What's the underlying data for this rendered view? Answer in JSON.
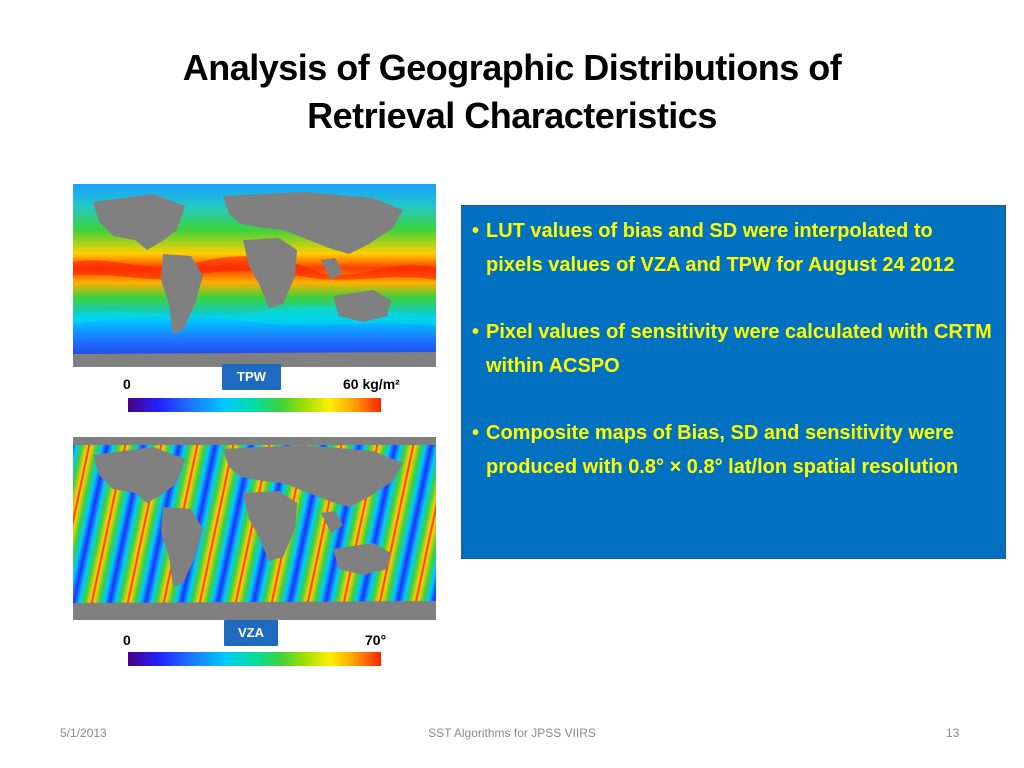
{
  "slide": {
    "title_line1": "Analysis of Geographic Distributions of",
    "title_line2": "Retrieval Characteristics"
  },
  "maps": {
    "tpw": {
      "badge": "TPW",
      "scale_min": "0",
      "scale_max": "60 kg/m²",
      "image": "global map of total precipitable water"
    },
    "vza": {
      "badge": "VZA",
      "scale_min": "0",
      "scale_max": "70°",
      "image": "global map of view zenith angle swaths"
    }
  },
  "bullets": [
    {
      "text": "LUT values of bias and SD were interpolated to pixels values of VZA and TPW for August 24 2012"
    },
    {
      "text": "Pixel values of sensitivity were calculated with CRTM within ACSPO"
    },
    {
      "text": "Composite maps of Bias, SD and sensitivity were produced with 0.8° × 0.8° lat/lon spatial resolution"
    }
  ],
  "footer": {
    "date": "5/1/2013",
    "center": "SST Algorithms for JPSS VIIRS",
    "page": "13"
  },
  "colors": {
    "info_box": "#0070c0",
    "bullet_text": "#ffff00",
    "badge": "#1f6bbf",
    "land": "#808080"
  }
}
